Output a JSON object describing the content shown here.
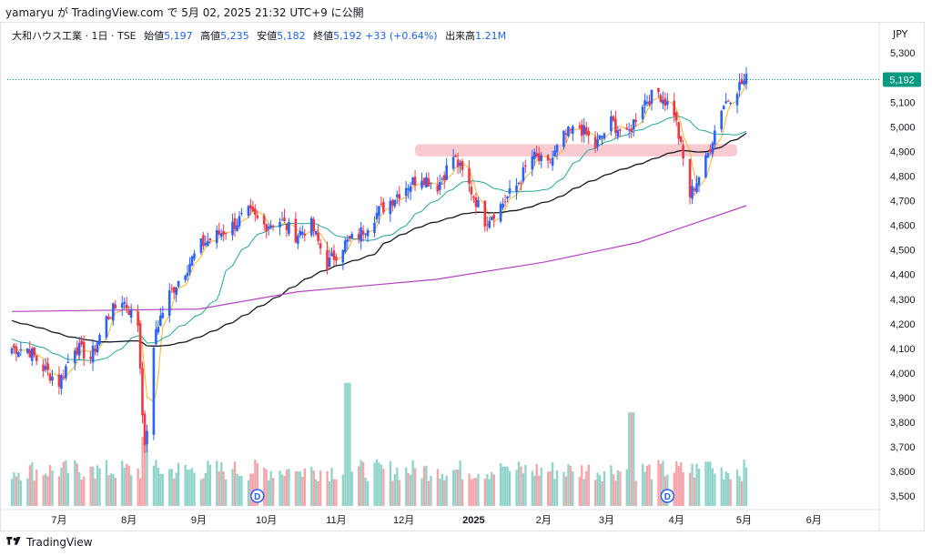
{
  "header": {
    "published": "yamaryu が TradingView.com で 5月 02, 2025 21:32 UTC+9 に公開"
  },
  "legend": {
    "symbol": "大和ハウス工業 · 1日 · TSE",
    "open_label": "始値",
    "open": "5,197",
    "high_label": "高値",
    "high": "5,235",
    "low_label": "安値",
    "low": "5,182",
    "close_label": "終値",
    "close": "5,192",
    "change": "+33 (+0.64%)",
    "volume_label": "出来高",
    "volume": "1.21M"
  },
  "currency": "JPY",
  "footer": {
    "brand": "TradingView"
  },
  "colors": {
    "up": "#089981",
    "down": "#f23645",
    "candle_up": "#2962ff",
    "candle_down": "#f23645",
    "vol_up": "#8fd3c9",
    "vol_down": "#f5a4a9",
    "ma_short": "#f7b52a",
    "ma_mid": "#26a69a",
    "ma_long": "#131722",
    "ma_200": "#b442c0",
    "zone": "#f7b8c0",
    "last_price": "#089981"
  },
  "chart_data": {
    "type": "candlestick",
    "title": "大和ハウス工業 · 1日 · TSE",
    "y_ticks": [
      3500,
      3600,
      3700,
      3800,
      3900,
      4000,
      4100,
      4200,
      4300,
      4400,
      4500,
      4600,
      4700,
      4800,
      4900,
      5000,
      5100,
      5200,
      5300
    ],
    "y_tick_labels": [
      "3,500",
      "3,600",
      "3,700",
      "3,800",
      "3,900",
      "4,000",
      "4,100",
      "4,200",
      "4,300",
      "4,400",
      "4,500",
      "4,600",
      "4,700",
      "4,800",
      "4,900",
      "5,000",
      "5,100",
      "5,200",
      "5,300"
    ],
    "ylim": [
      3460,
      5360
    ],
    "x_labels": [
      "7月",
      "8月",
      "9月",
      "10月",
      "11月",
      "12月",
      "2025",
      "2月",
      "3月",
      "4月",
      "5月",
      "6月"
    ],
    "last_price": 5192,
    "last_price_label": "5,192",
    "resistance_zone": [
      4880,
      4930
    ],
    "dividend_marker": "D",
    "price_path": [
      [
        "2024-06-17",
        4100
      ],
      [
        "2024-06-24",
        4020
      ],
      [
        "2024-07-01",
        3960
      ],
      [
        "2024-07-08",
        4110
      ],
      [
        "2024-07-15",
        4060
      ],
      [
        "2024-07-22",
        4220
      ],
      [
        "2024-07-29",
        4300
      ],
      [
        "2024-08-05",
        4200
      ],
      [
        "2024-08-08",
        3680
      ],
      [
        "2024-08-13",
        4180
      ],
      [
        "2024-08-19",
        4320
      ],
      [
        "2024-08-26",
        4420
      ],
      [
        "2024-09-02",
        4520
      ],
      [
        "2024-09-09",
        4560
      ],
      [
        "2024-09-16",
        4600
      ],
      [
        "2024-09-23",
        4650
      ],
      [
        "2024-09-30",
        4600
      ],
      [
        "2024-10-07",
        4620
      ],
      [
        "2024-10-14",
        4560
      ],
      [
        "2024-10-21",
        4600
      ],
      [
        "2024-10-28",
        4440
      ],
      [
        "2024-11-04",
        4520
      ],
      [
        "2024-11-11",
        4560
      ],
      [
        "2024-11-18",
        4640
      ],
      [
        "2024-11-25",
        4700
      ],
      [
        "2024-12-02",
        4760
      ],
      [
        "2024-12-09",
        4800
      ],
      [
        "2024-12-16",
        4760
      ],
      [
        "2024-12-23",
        4880
      ],
      [
        "2024-12-30",
        4760
      ],
      [
        "2025-01-06",
        4620
      ],
      [
        "2025-01-13",
        4680
      ],
      [
        "2025-01-20",
        4760
      ],
      [
        "2025-01-27",
        4880
      ],
      [
        "2025-02-03",
        4840
      ],
      [
        "2025-02-10",
        4960
      ],
      [
        "2025-02-17",
        5000
      ],
      [
        "2025-02-24",
        4920
      ],
      [
        "2025-03-03",
        5020
      ],
      [
        "2025-03-10",
        4960
      ],
      [
        "2025-03-17",
        5100
      ],
      [
        "2025-03-24",
        5140
      ],
      [
        "2025-03-31",
        5060
      ],
      [
        "2025-04-07",
        4720
      ],
      [
        "2025-04-14",
        4860
      ],
      [
        "2025-04-21",
        5080
      ],
      [
        "2025-04-28",
        5160
      ],
      [
        "2025-05-02",
        5192
      ]
    ],
    "volume_path": [
      [
        "2024-07",
        3620
      ],
      [
        "2024-08-08",
        3740
      ],
      [
        "2024-09",
        3610
      ],
      [
        "2024-10",
        3600
      ],
      [
        "2024-11-06",
        3960
      ],
      [
        "2024-12",
        3610
      ],
      [
        "2025-01",
        3620
      ],
      [
        "2025-02",
        3600
      ],
      [
        "2025-03-12",
        3840
      ],
      [
        "2025-04",
        3640
      ],
      [
        "2025-05",
        3600
      ]
    ]
  }
}
